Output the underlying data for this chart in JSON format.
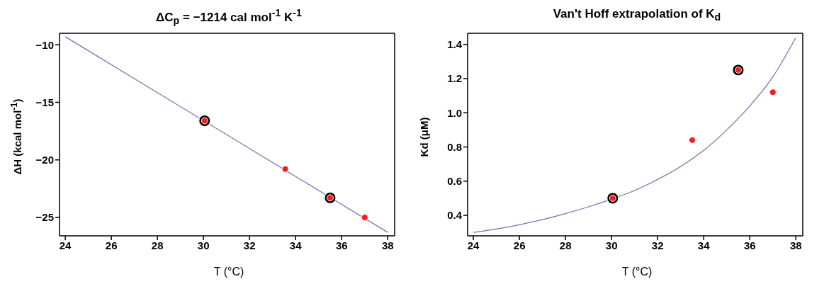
{
  "chart_data": [
    {
      "type": "scatter",
      "title": "ΔC$_{p}$ = −1214 cal mol$^{-1}$ K$^{-1}$",
      "xlabel": "T (°C)",
      "ylabel": "ΔH (kcal mol$^{-1}$)",
      "xlim": [
        23.75,
        38.3
      ],
      "xticks": [
        24,
        26,
        28,
        30,
        32,
        34,
        36,
        38
      ],
      "ylim": [
        -26.6,
        -9.0
      ],
      "yticks": [
        {
          "value": -10,
          "label": "−10"
        },
        {
          "value": -15,
          "label": "−15"
        },
        {
          "value": -20,
          "label": "−20"
        },
        {
          "value": -25,
          "label": "−25"
        }
      ],
      "grid": false,
      "legend": false,
      "series": [
        {
          "type": "line",
          "marker": "none",
          "color": "#6f6fb5",
          "x": [
            24,
            38
          ],
          "values": [
            -9.3,
            -26.3
          ]
        },
        {
          "marker": "circle",
          "color": "#000000",
          "x": [
            30.05,
            35.5
          ],
          "values": [
            -16.6,
            -23.3
          ]
        },
        {
          "marker": "circle",
          "color": "#ff1a1a",
          "x": [
            30.05,
            33.55,
            35.5,
            37.0
          ],
          "values": [
            -16.6,
            -20.8,
            -23.3,
            -25.0
          ]
        }
      ]
    },
    {
      "type": "scatter",
      "title": "Van't Hoff extrapolation of K$_{d}$",
      "xlabel": "T (°C)",
      "ylabel": "Kd (μM)",
      "xlim": [
        23.75,
        38.3
      ],
      "xticks": [
        24,
        26,
        28,
        30,
        32,
        34,
        36,
        38
      ],
      "ylim": [
        0.28,
        1.465
      ],
      "yticks": [
        0.4,
        0.6,
        0.8,
        {
          "value": 1.0,
          "label": "1.0"
        },
        1.2,
        1.4
      ],
      "grid": false,
      "legend": false,
      "series": [
        {
          "type": "line",
          "marker": "none",
          "color": "#6f6fb5",
          "x": [
            24,
            25,
            26,
            27,
            28,
            29,
            30,
            31,
            32,
            33,
            34,
            35,
            36,
            37,
            38
          ],
          "values": [
            0.3,
            0.32,
            0.345,
            0.375,
            0.41,
            0.45,
            0.495,
            0.545,
            0.61,
            0.685,
            0.78,
            0.9,
            1.04,
            1.21,
            1.44
          ]
        },
        {
          "marker": "circle",
          "color": "#000000",
          "x": [
            30.05,
            35.5
          ],
          "values": [
            0.5,
            1.25
          ]
        },
        {
          "marker": "circle",
          "color": "#ff1a1a",
          "x": [
            30.05,
            33.5,
            35.5,
            37.0
          ],
          "values": [
            0.5,
            0.84,
            1.25,
            1.12
          ]
        }
      ]
    }
  ]
}
